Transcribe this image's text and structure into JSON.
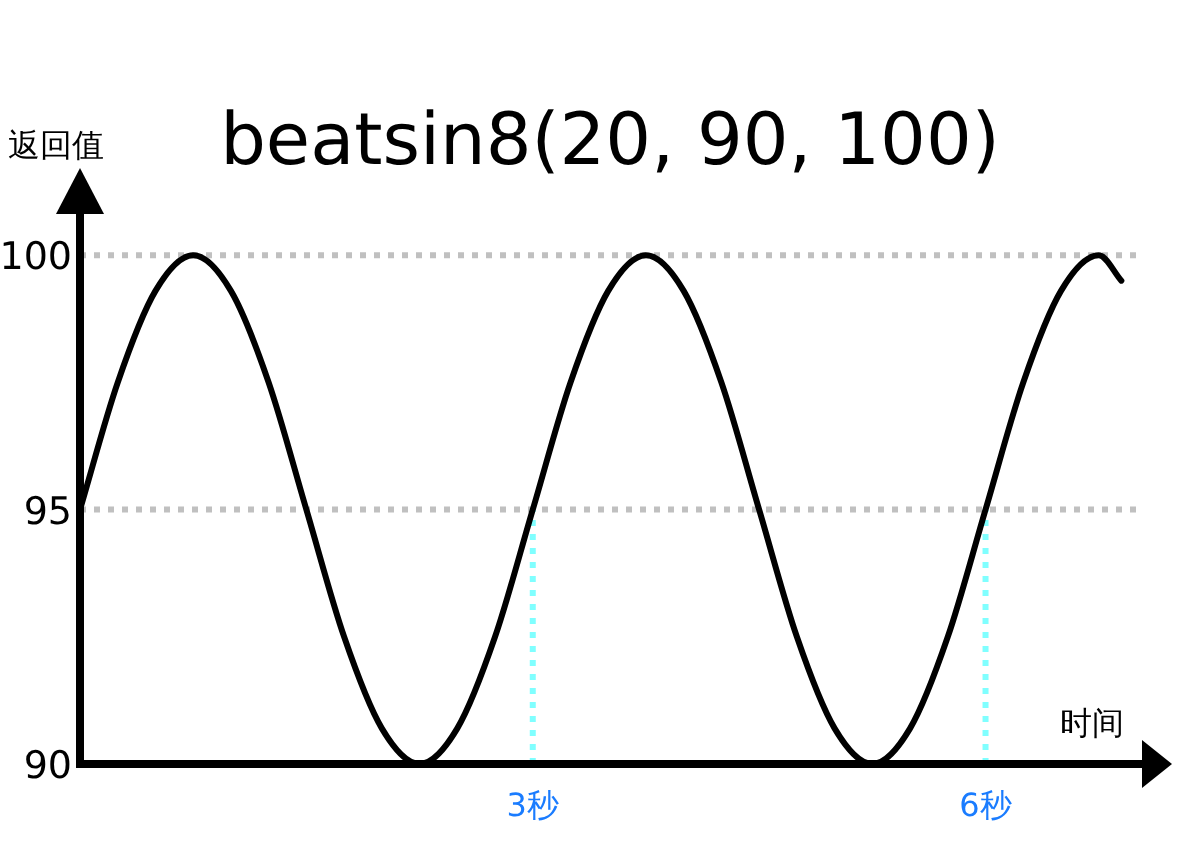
{
  "chart_data": {
    "type": "line",
    "title": "beatsin8(20, 90, 100)",
    "xlabel": "时间",
    "ylabel": "返回值",
    "xlim": [
      0,
      7.05
    ],
    "ylim": [
      90,
      100.85
    ],
    "xticks": [
      {
        "value": 3,
        "label": "3秒"
      },
      {
        "value": 6,
        "label": "6秒"
      }
    ],
    "yticks": [
      90,
      95,
      100
    ],
    "series": [
      {
        "color": "#000000",
        "x": [
          0,
          0.25,
          0.5,
          0.75,
          1,
          1.25,
          1.5,
          1.75,
          2,
          2.25,
          2.5,
          2.75,
          3,
          3.25,
          3.5,
          3.75,
          4,
          4.25,
          4.5,
          4.75,
          5,
          5.25,
          5.5,
          5.75,
          6,
          6.25,
          6.5,
          6.75,
          6.9
        ],
        "values": [
          95,
          97.5,
          99.3,
          100,
          99.3,
          97.5,
          95,
          92.5,
          90.7,
          90,
          90.7,
          92.5,
          95,
          97.5,
          99.3,
          100,
          99.3,
          97.5,
          95,
          92.5,
          90.7,
          90,
          90.7,
          92.5,
          95,
          97.5,
          99.3,
          100,
          99.5
        ]
      }
    ],
    "ref_lines": [
      {
        "axis": "y",
        "value": 100,
        "color": "#c0c0c0",
        "line_style": "dotted"
      },
      {
        "axis": "y",
        "value": 95,
        "color": "#c0c0c0",
        "line_style": "dotted"
      },
      {
        "axis": "x",
        "value": 3,
        "color": "#80ffff",
        "line_style": "dotted"
      },
      {
        "axis": "x",
        "value": 6,
        "color": "#80ffff",
        "line_style": "dotted"
      }
    ]
  }
}
